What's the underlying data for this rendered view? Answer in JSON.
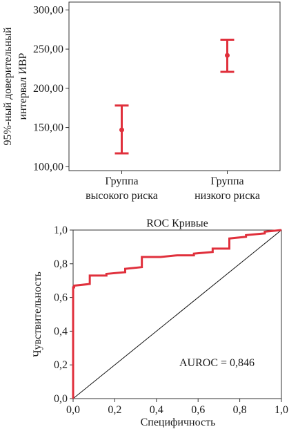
{
  "chart_data": [
    {
      "type": "errorbar",
      "ylabel_line1": "95%-ный доверительный",
      "ylabel_line2": "интервал ИВР",
      "ylim": [
        95,
        310
      ],
      "yticks": [
        "100,00",
        "150,00",
        "200,00",
        "250,00",
        "300,00"
      ],
      "ytick_values": [
        100,
        150,
        200,
        250,
        300
      ],
      "grid": false,
      "color": "#e0303c",
      "groups": [
        {
          "label_line1": "Группа",
          "label_line2": "высокого риска",
          "mean": 147,
          "lower": 117,
          "upper": 178
        },
        {
          "label_line1": "Группа",
          "label_line2": "низкого риска",
          "mean": 242,
          "lower": 221,
          "upper": 262
        }
      ]
    },
    {
      "type": "line",
      "title": "ROC Кривые",
      "xlabel": "Специфичность",
      "ylabel": "Чувствительность",
      "xlim": [
        0,
        1
      ],
      "ylim": [
        0,
        1
      ],
      "xticks": [
        "0,0",
        "0,2",
        "0,4",
        "0,6",
        "0,8",
        "1,0"
      ],
      "yticks": [
        "0,0",
        "0,2",
        "0,4",
        "0,6",
        "0,8",
        "1,0"
      ],
      "tick_values": [
        0,
        0.2,
        0.4,
        0.6,
        0.8,
        1.0
      ],
      "annotation": "AUROC = 0,846",
      "curve_color": "#e0303c",
      "diagonal_color": "#111111",
      "series": [
        {
          "x": [
            0,
            0,
            0.005,
            0.005,
            0.08,
            0.08,
            0.16,
            0.16,
            0.25,
            0.25,
            0.33,
            0.33,
            0.42,
            0.5,
            0.58,
            0.58,
            0.67,
            0.67,
            0.75,
            0.75,
            0.83,
            0.83,
            0.92,
            0.92,
            1.0
          ],
          "y": [
            0,
            0.66,
            0.66,
            0.67,
            0.68,
            0.73,
            0.73,
            0.74,
            0.75,
            0.77,
            0.78,
            0.84,
            0.84,
            0.85,
            0.85,
            0.86,
            0.87,
            0.89,
            0.89,
            0.95,
            0.96,
            0.97,
            0.98,
            0.99,
            1.0
          ]
        },
        {
          "x": [
            0,
            1
          ],
          "y": [
            0,
            1
          ]
        }
      ]
    }
  ]
}
